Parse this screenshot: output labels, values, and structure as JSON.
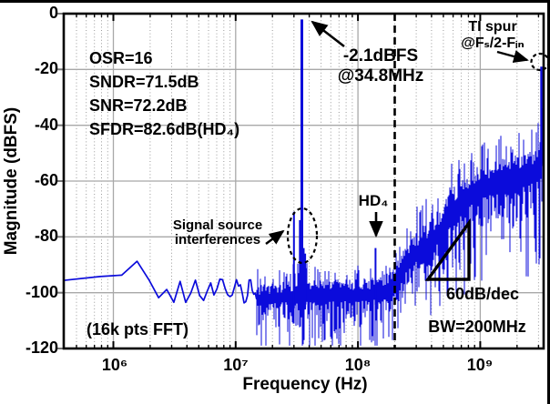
{
  "chart_data": {
    "type": "line",
    "title": "",
    "xlabel": "Frequency (Hz)",
    "ylabel": "Magnitude (dBFS)",
    "xscale": "log",
    "xlim": [
      393000,
      3300000000
    ],
    "ylim": [
      -120,
      0
    ],
    "grid": true,
    "trace_color": "#0b0bdb",
    "grid_color": "#a8a8a8",
    "x_ticks": [
      {
        "value": 1000000,
        "label": "10⁶"
      },
      {
        "value": 10000000,
        "label": "10⁷"
      },
      {
        "value": 100000000,
        "label": "10⁸"
      },
      {
        "value": 1000000000,
        "label": "10⁹"
      }
    ],
    "y_ticks": [
      {
        "value": 0,
        "label": "0"
      },
      {
        "value": -20,
        "label": "-20"
      },
      {
        "value": -40,
        "label": "-40"
      },
      {
        "value": -60,
        "label": "-60"
      },
      {
        "value": -80,
        "label": "-80"
      },
      {
        "value": -100,
        "label": "-100"
      },
      {
        "value": -120,
        "label": "-120"
      }
    ],
    "fft_bin_hz": 390625,
    "signal_tone": {
      "freq_hz": 34800000,
      "level_dbfs": -2.1
    },
    "spurs": [
      {
        "name": "interference-spur-1",
        "freq_hz": 30000000,
        "level_dbfs": -71
      },
      {
        "name": "interference-spur-2",
        "freq_hz": 33500000,
        "level_dbfs": -74
      },
      {
        "name": "interference-spur-3",
        "freq_hz": 37000000,
        "level_dbfs": -86
      },
      {
        "name": "hd4-spur",
        "freq_hz": 139200000,
        "level_dbfs": -84
      },
      {
        "name": "ti-spur",
        "freq_hz": 3165000000,
        "level_dbfs": -19
      }
    ],
    "bandwidth_marker_hz": 200000000,
    "slope_db_per_decade": 60,
    "noise_floor_median_dbfs": [
      [
        393000,
        -97
      ],
      [
        600000,
        -95
      ],
      [
        780000,
        -93.5
      ],
      [
        1000000,
        -93
      ],
      [
        1300000,
        -92.5
      ],
      [
        1600000,
        -89.5
      ],
      [
        1950000,
        -96
      ],
      [
        2350000,
        -102.5
      ],
      [
        2700000,
        -98
      ],
      [
        3100000,
        -103
      ],
      [
        3500000,
        -97
      ],
      [
        3900000,
        -103
      ],
      [
        4300000,
        -99
      ],
      [
        4700000,
        -95
      ],
      [
        5100000,
        -101
      ],
      [
        5600000,
        -103
      ],
      [
        6200000,
        -95
      ],
      [
        6800000,
        -102
      ],
      [
        7600000,
        -93
      ],
      [
        8400000,
        -101
      ],
      [
        9200000,
        -103
      ],
      [
        10000000,
        -95
      ],
      [
        11000000,
        -98
      ],
      [
        12000000,
        -104
      ],
      [
        13000000,
        -96
      ],
      [
        15000000,
        -102
      ],
      [
        20000000,
        -101
      ],
      [
        50000000,
        -100
      ],
      [
        100000000,
        -100
      ],
      [
        160000000,
        -99
      ],
      [
        200000000,
        -96
      ],
      [
        250000000,
        -89
      ],
      [
        300000000,
        -85
      ],
      [
        420000000,
        -80
      ],
      [
        600000000,
        -70
      ],
      [
        900000000,
        -62
      ],
      [
        1200000000,
        -60
      ],
      [
        1800000000,
        -58
      ],
      [
        2600000000,
        -56
      ],
      [
        3000000000,
        -53
      ],
      [
        3300000000,
        -47
      ]
    ],
    "noise_peak_spread_db": [
      [
        15000000,
        7
      ],
      [
        200000000,
        8
      ],
      [
        400000000,
        12
      ],
      [
        600000000,
        12
      ],
      [
        1000000000,
        11
      ],
      [
        3300000000,
        10
      ]
    ],
    "noise_dip_spread_db": [
      [
        15000000,
        13
      ],
      [
        200000000,
        16
      ],
      [
        400000000,
        22
      ],
      [
        600000000,
        24
      ],
      [
        1000000000,
        25
      ],
      [
        3300000000,
        26
      ]
    ],
    "annotations": {
      "stats": [
        "OSR=16",
        "SNDR=71.5dB",
        "SNR=72.2dB",
        "SFDR=82.6dB(HD₄)"
      ],
      "signal_callout": [
        "-2.1dBFS",
        "@34.8MHz"
      ],
      "ti_spur_callout": [
        "TI spur",
        "@Fₛ/2-Fᵢₙ"
      ],
      "interference_callout": [
        "Signal source",
        "interferences"
      ],
      "hd4_label": "HD₄",
      "slope_label": "60dB/dec",
      "bandwidth_label": "BW=200MHz",
      "fft_label": "(16k pts FFT)"
    }
  }
}
